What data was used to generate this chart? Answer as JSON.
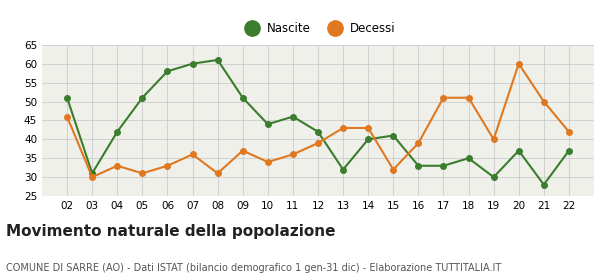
{
  "years": [
    "02",
    "03",
    "04",
    "05",
    "06",
    "07",
    "08",
    "09",
    "10",
    "11",
    "12",
    "13",
    "14",
    "15",
    "16",
    "17",
    "18",
    "19",
    "20",
    "21",
    "22"
  ],
  "nascite": [
    51,
    31,
    42,
    51,
    58,
    60,
    61,
    51,
    44,
    46,
    42,
    32,
    40,
    41,
    33,
    33,
    35,
    30,
    37,
    28,
    37
  ],
  "decessi": [
    46,
    30,
    33,
    31,
    33,
    36,
    31,
    37,
    34,
    36,
    39,
    43,
    43,
    32,
    39,
    51,
    51,
    40,
    60,
    50,
    42
  ],
  "nascite_color": "#3a7d2c",
  "decessi_color": "#e07820",
  "plot_bg_color": "#f0f0eb",
  "fig_bg_color": "#ffffff",
  "grid_color": "#cccccc",
  "ylim": [
    25,
    65
  ],
  "yticks": [
    25,
    30,
    35,
    40,
    45,
    50,
    55,
    60,
    65
  ],
  "title": "Movimento naturale della popolazione",
  "subtitle": "COMUNE DI SARRE (AO) - Dati ISTAT (bilancio demografico 1 gen-31 dic) - Elaborazione TUTTITALIA.IT",
  "legend_nascite": "Nascite",
  "legend_decessi": "Decessi",
  "title_fontsize": 11,
  "subtitle_fontsize": 7,
  "tick_fontsize": 7.5,
  "legend_fontsize": 8.5,
  "marker_size": 4,
  "legend_marker_size": 11,
  "line_width": 1.5
}
